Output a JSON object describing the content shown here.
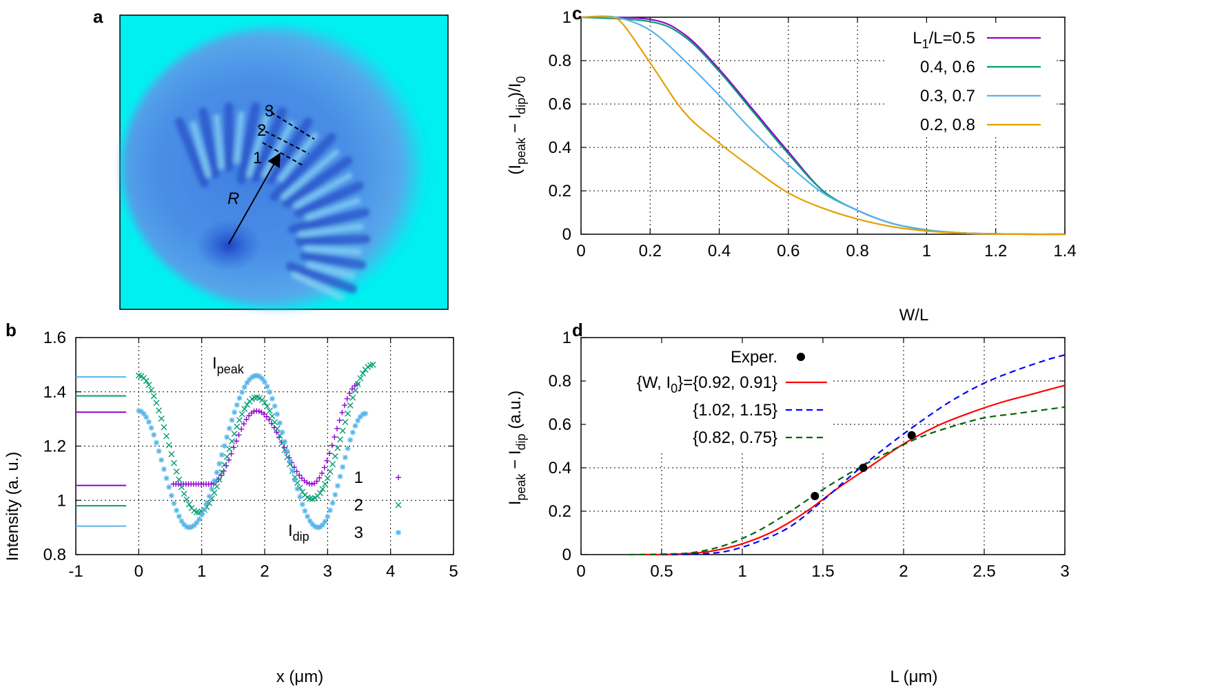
{
  "panel_labels": {
    "a": "a",
    "b": "b",
    "c": "c",
    "d": "d"
  },
  "colors": {
    "purple": "#9400d3",
    "green": "#009e73",
    "skyblue": "#56b4e9",
    "orange": "#e69f00",
    "red": "#ff0000",
    "blue": "#0000ff",
    "darkgreen": "#006400",
    "black": "#000000",
    "image_bg": "#00f0f0",
    "image_spot": "#1a55cc"
  },
  "image_panel": {
    "label_R": "R",
    "line_labels": [
      "1",
      "2",
      "3"
    ]
  },
  "chart_data": [
    {
      "id": "b",
      "type": "scatter",
      "xlabel": "x (μm)",
      "ylabel": "Intensity (a. u.)",
      "xlim": [
        -1,
        5
      ],
      "ylim": [
        0.8,
        1.6
      ],
      "xticks": [
        "-1",
        "0",
        "1",
        "2",
        "3",
        "4",
        "5"
      ],
      "yticks": [
        "0.8",
        "1",
        "1.2",
        "1.4",
        "1.6"
      ],
      "grid": true,
      "legend_position": "bottom-right",
      "annotations": {
        "peak_main": "I",
        "peak_sub": "peak",
        "dip_main": "I",
        "dip_sub": "dip"
      },
      "series": [
        {
          "name": "1",
          "color": "#9400d3",
          "marker": "+",
          "x_range": [
            0.55,
            3.5
          ],
          "x_peak": 1.87,
          "dip1": [
            1.15,
            1.06
          ],
          "peak_y": 1.33,
          "dip2": [
            2.75,
            1.06
          ],
          "end_y": 1.43,
          "level_lines": [
            1.325,
            1.055
          ]
        },
        {
          "name": "2",
          "color": "#009e73",
          "marker": "x",
          "x_range": [
            0.0,
            3.72
          ],
          "x_peak": 1.87,
          "start_y": 1.46,
          "dip1": [
            0.95,
            0.955
          ],
          "peak_y": 1.38,
          "dip2": [
            2.75,
            1.005
          ],
          "end_y": 1.5,
          "level_lines": [
            1.385,
            0.98
          ]
        },
        {
          "name": "3",
          "color": "#56b4e9",
          "marker": "*",
          "x_range": [
            0.0,
            3.6
          ],
          "x_peak": 1.87,
          "start_y": 1.33,
          "dip1": [
            0.8,
            0.9
          ],
          "peak_y": 1.46,
          "dip2": [
            2.85,
            0.9
          ],
          "end_y": 1.32,
          "level_lines": [
            1.455,
            0.905
          ]
        }
      ]
    },
    {
      "id": "c",
      "type": "line",
      "xlabel": "W/L",
      "ylabel": "(I_peak − I_dip)/I_0",
      "xlim": [
        0,
        1.4
      ],
      "ylim": [
        0,
        1
      ],
      "xticks": [
        "0",
        "0.2",
        "0.4",
        "0.6",
        "0.8",
        "1",
        "1.2",
        "1.4"
      ],
      "yticks": [
        "0",
        "0.2",
        "0.4",
        "0.6",
        "0.8",
        "1"
      ],
      "grid": true,
      "legend_position": "top-right",
      "series": [
        {
          "name": "L1/L=0.5",
          "color": "#9400d3",
          "x": [
            0,
            0.2,
            0.3,
            0.4,
            0.5,
            0.6,
            0.7,
            0.8,
            0.9,
            1.0,
            1.1,
            1.2,
            1.3,
            1.4
          ],
          "y": [
            1,
            0.99,
            0.92,
            0.76,
            0.57,
            0.38,
            0.2,
            0.11,
            0.05,
            0.02,
            0.006,
            0.002,
            0,
            0
          ]
        },
        {
          "name": "0.4, 0.6",
          "color": "#009e73",
          "x": [
            0,
            0.2,
            0.3,
            0.4,
            0.5,
            0.6,
            0.7,
            0.8,
            0.9,
            1.0,
            1.1,
            1.2,
            1.3,
            1.4
          ],
          "y": [
            1,
            0.98,
            0.91,
            0.75,
            0.56,
            0.37,
            0.2,
            0.11,
            0.05,
            0.02,
            0.006,
            0.002,
            0,
            0
          ]
        },
        {
          "name": "0.3, 0.7",
          "color": "#56b4e9",
          "x": [
            0,
            0.1,
            0.2,
            0.3,
            0.4,
            0.5,
            0.6,
            0.7,
            0.8,
            0.9,
            1.0,
            1.1,
            1.2,
            1.3,
            1.4
          ],
          "y": [
            1,
            1.0,
            0.94,
            0.8,
            0.64,
            0.47,
            0.32,
            0.19,
            0.11,
            0.05,
            0.02,
            0.006,
            0.002,
            0,
            0
          ]
        },
        {
          "name": "0.2, 0.8",
          "color": "#e69f00",
          "x": [
            0,
            0.08,
            0.12,
            0.2,
            0.3,
            0.4,
            0.5,
            0.6,
            0.7,
            0.8,
            0.9,
            1.0,
            1.1,
            1.2,
            1.3,
            1.4
          ],
          "y": [
            1,
            1.0,
            0.97,
            0.79,
            0.56,
            0.42,
            0.3,
            0.19,
            0.12,
            0.07,
            0.035,
            0.015,
            0.005,
            0.001,
            0,
            0
          ]
        }
      ],
      "legend_sub": {
        "prefix": "L",
        "sub": "1",
        "suffix": "/L=0.5"
      }
    },
    {
      "id": "d",
      "type": "line",
      "xlabel": "L (μm)",
      "ylabel": "I_peak − I_dip (a.u.)",
      "xlim": [
        0,
        3
      ],
      "ylim": [
        0,
        1
      ],
      "xticks": [
        "0",
        "0.5",
        "1",
        "1.5",
        "2",
        "2.5",
        "3"
      ],
      "yticks": [
        "0",
        "0.2",
        "0.4",
        "0.6",
        "0.8",
        "1"
      ],
      "grid": true,
      "legend_position": "top-left",
      "points": {
        "name": "Exper.",
        "color": "#000000",
        "x": [
          1.45,
          1.75,
          2.05
        ],
        "y": [
          0.27,
          0.4,
          0.55
        ]
      },
      "series": [
        {
          "name": "{W, I0}={0.92, 0.91}",
          "color": "#ff0000",
          "dash": false,
          "x": [
            0.4,
            0.6,
            0.8,
            1.0,
            1.2,
            1.4,
            1.6,
            1.8,
            2.0,
            2.2,
            2.4,
            2.6,
            2.8,
            3.0
          ],
          "y": [
            0,
            0.002,
            0.015,
            0.05,
            0.11,
            0.2,
            0.31,
            0.41,
            0.51,
            0.59,
            0.65,
            0.7,
            0.74,
            0.78
          ]
        },
        {
          "name": "{1.02, 1.15}",
          "color": "#0000ff",
          "dash": true,
          "x": [
            0.5,
            0.7,
            0.9,
            1.1,
            1.3,
            1.5,
            1.7,
            1.9,
            2.1,
            2.3,
            2.5,
            2.7,
            2.9,
            3.0
          ],
          "y": [
            0,
            0.002,
            0.015,
            0.06,
            0.13,
            0.25,
            0.38,
            0.5,
            0.61,
            0.71,
            0.79,
            0.85,
            0.9,
            0.92
          ]
        },
        {
          "name": "{0.82, 0.75}",
          "color": "#006400",
          "dash": true,
          "x": [
            0.3,
            0.5,
            0.7,
            0.9,
            1.1,
            1.3,
            1.5,
            1.7,
            1.9,
            2.1,
            2.3,
            2.5,
            2.7,
            2.9,
            3.0
          ],
          "y": [
            0,
            0.002,
            0.01,
            0.045,
            0.11,
            0.2,
            0.3,
            0.39,
            0.47,
            0.54,
            0.59,
            0.63,
            0.65,
            0.67,
            0.68
          ]
        }
      ],
      "legend_sub": {
        "prefix": "{W, I",
        "sub": "0",
        "suffix": "}={0.92, 0.91}"
      }
    }
  ]
}
